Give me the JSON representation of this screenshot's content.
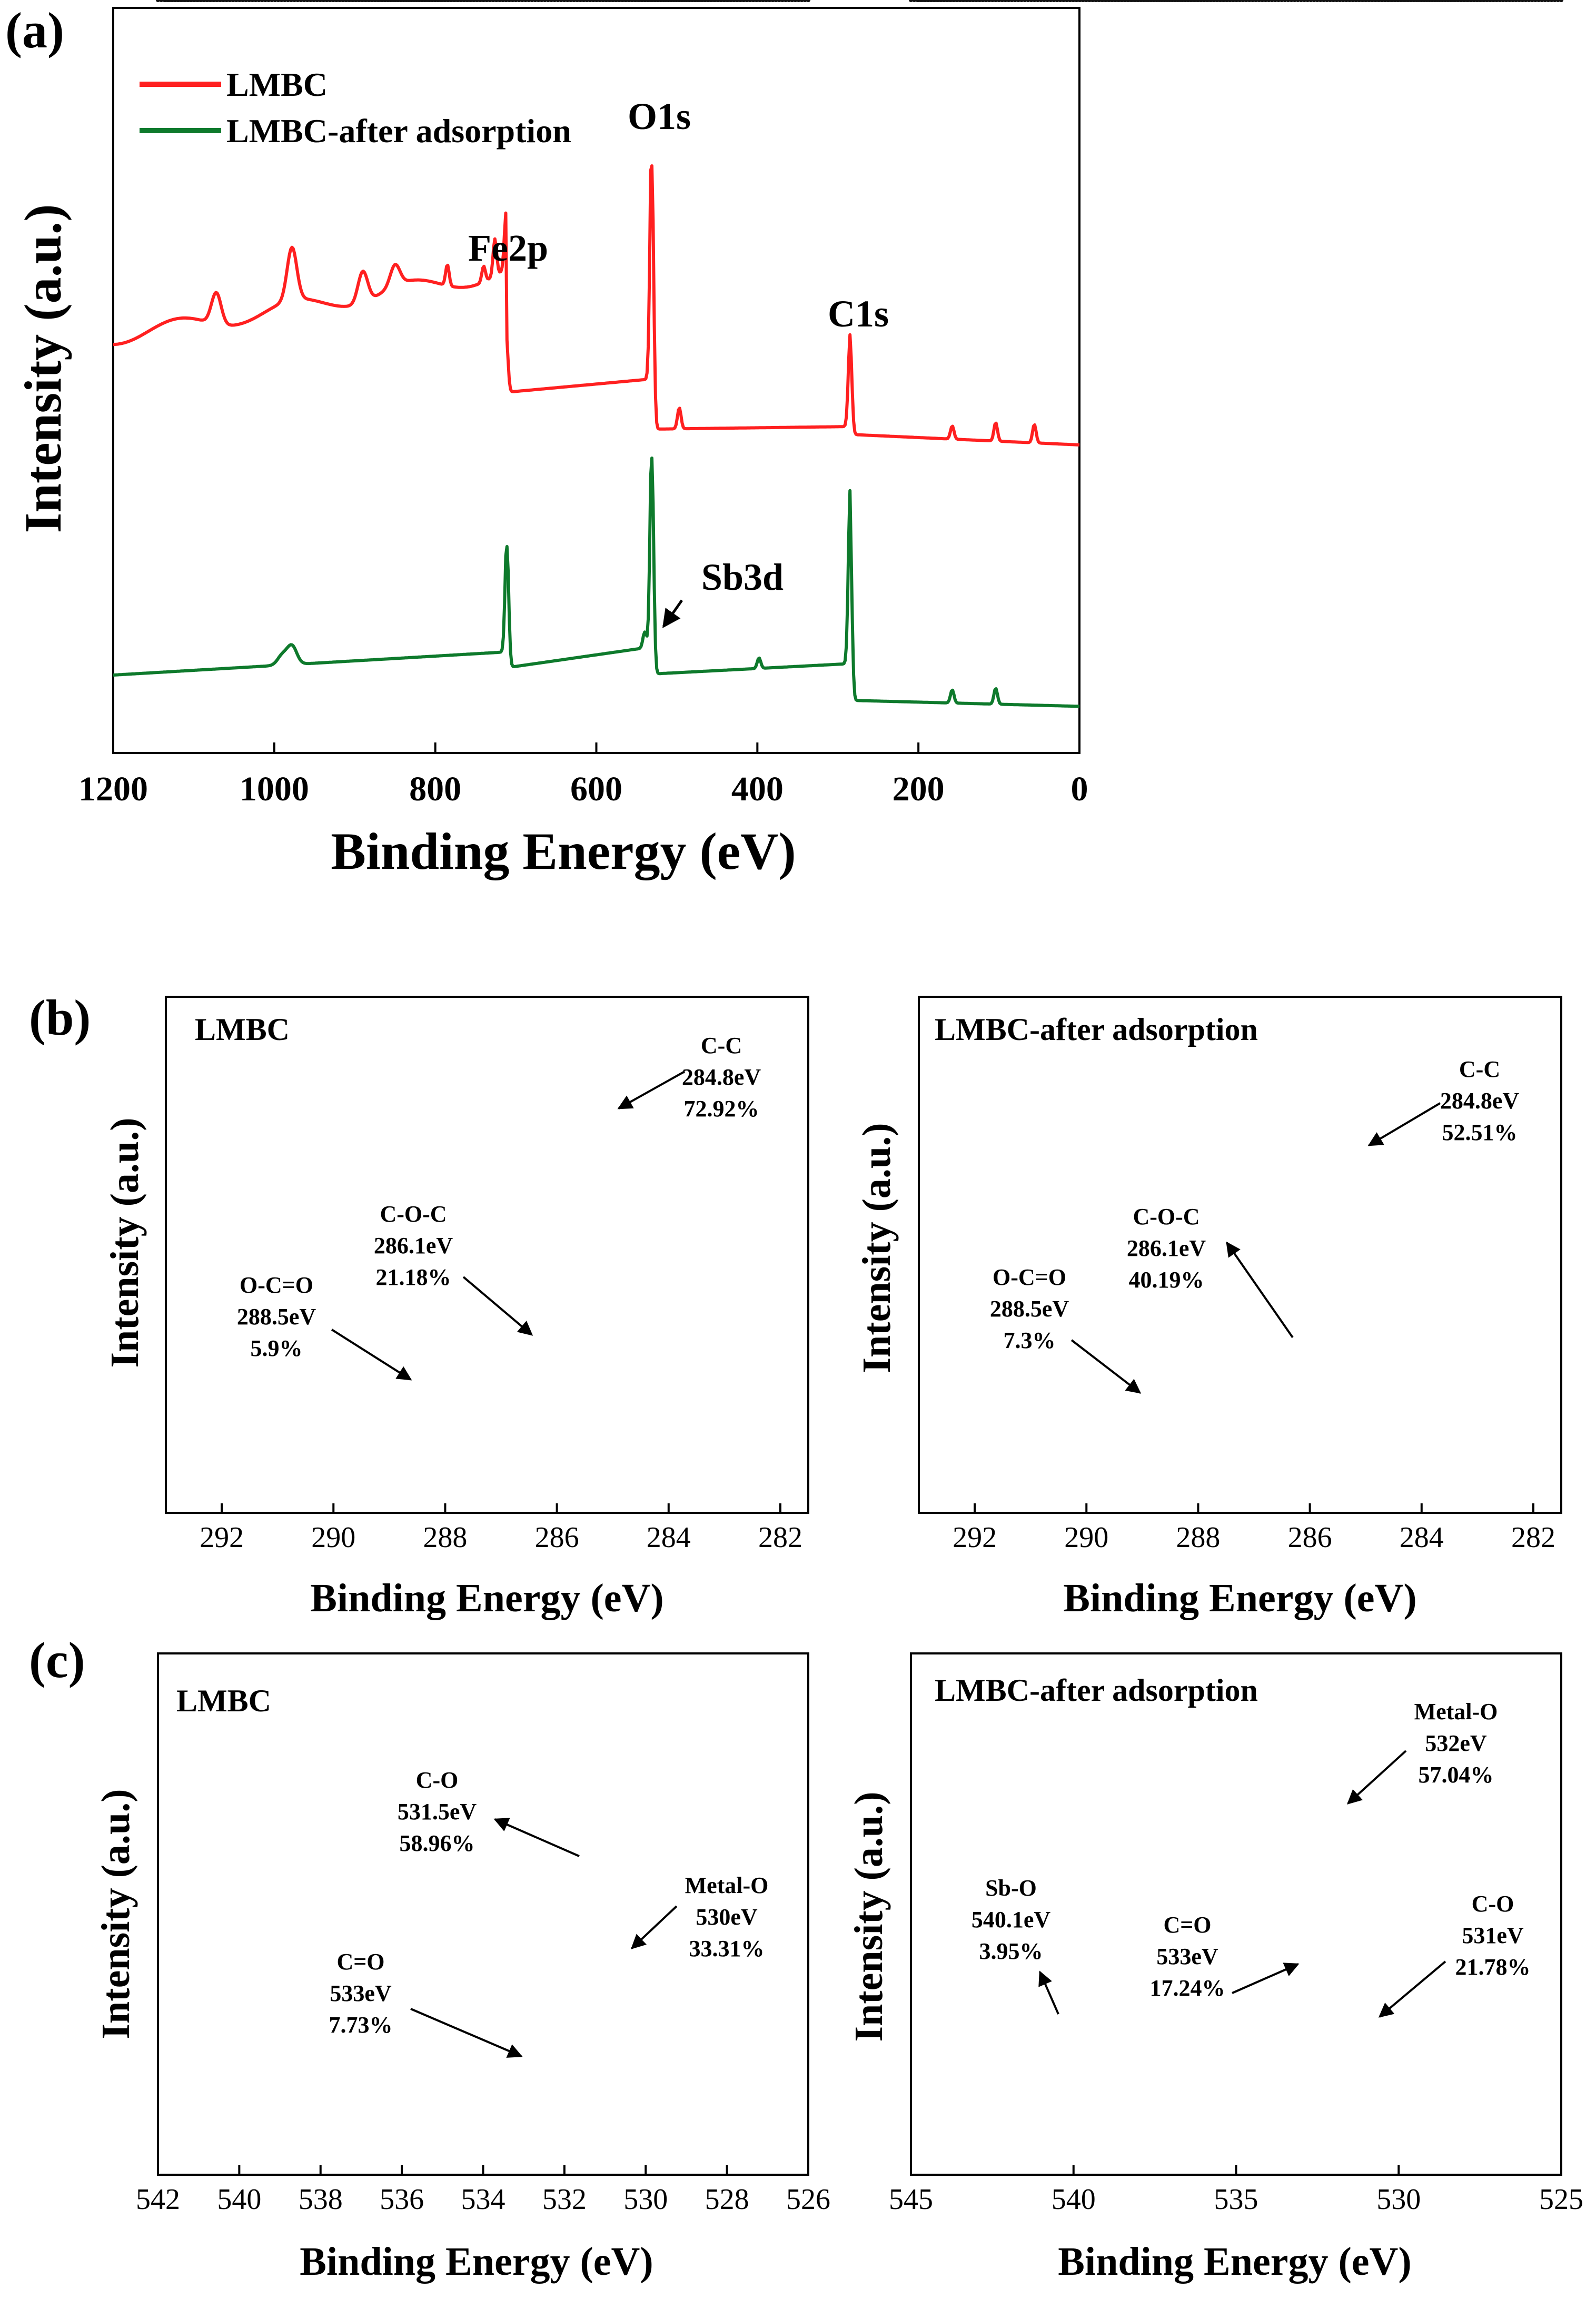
{
  "panels": {
    "a": {
      "letter": "(a)",
      "xlabel": "Binding Energy (eV)",
      "ylabel": "Intensity (a.u.)",
      "xticks": [
        "1200",
        "1000",
        "800",
        "600",
        "400",
        "200",
        "0"
      ],
      "legend": [
        {
          "label": "LMBC",
          "color": "#ff2020"
        },
        {
          "label": "LMBC-after adsorption",
          "color": "#0e7a2c"
        }
      ],
      "peaks": [
        {
          "label": "O1s"
        },
        {
          "label": "Fe2p"
        },
        {
          "label": "C1s"
        },
        {
          "label": "Sb3d"
        }
      ]
    },
    "b": {
      "letter": "(b)",
      "left": {
        "title": "LMBC",
        "xlabel": "Binding Energy (eV)",
        "ylabel": "Intensity (a.u.)",
        "xticks": [
          "292",
          "290",
          "288",
          "286",
          "284",
          "282"
        ],
        "annotations": [
          {
            "lines": [
              "C-C",
              "284.8eV",
              "72.92%"
            ]
          },
          {
            "lines": [
              "C-O-C",
              "286.1eV",
              "21.18%"
            ]
          },
          {
            "lines": [
              "O-C=O",
              "288.5eV",
              "5.9%"
            ]
          }
        ]
      },
      "right": {
        "title": "LMBC-after adsorption",
        "xlabel": "Binding Energy (eV)",
        "ylabel": "Intensity (a.u.)",
        "xticks": [
          "292",
          "290",
          "288",
          "286",
          "284",
          "282"
        ],
        "annotations": [
          {
            "lines": [
              "C-C",
              "284.8eV",
              "52.51%"
            ]
          },
          {
            "lines": [
              "C-O-C",
              "286.1eV",
              "40.19%"
            ]
          },
          {
            "lines": [
              "O-C=O",
              "288.5eV",
              "7.3%"
            ]
          }
        ]
      }
    },
    "c": {
      "letter": "(c)",
      "left": {
        "title": "LMBC",
        "xlabel": "Binding Energy (eV)",
        "ylabel": "Intensity (a.u.)",
        "xticks": [
          "542",
          "540",
          "538",
          "536",
          "534",
          "532",
          "530",
          "528",
          "526"
        ],
        "annotations": [
          {
            "lines": [
              "C-O",
              "531.5eV",
              "58.96%"
            ]
          },
          {
            "lines": [
              "Metal-O",
              "530eV",
              "33.31%"
            ]
          },
          {
            "lines": [
              "C=O",
              "533eV",
              "7.73%"
            ]
          }
        ]
      },
      "right": {
        "title": "LMBC-after adsorption",
        "xlabel": "Binding Energy (eV)",
        "ylabel": "Intensity (a.u.)",
        "xticks": [
          "545",
          "540",
          "535",
          "530",
          "525"
        ],
        "annotations": [
          {
            "lines": [
              "Metal-O",
              "532eV",
              "57.04%"
            ]
          },
          {
            "lines": [
              "Sb-O",
              "540.1eV",
              "3.95%"
            ]
          },
          {
            "lines": [
              "C=O",
              "533eV",
              "17.24%"
            ]
          },
          {
            "lines": [
              "C-O",
              "531eV",
              "21.78%"
            ]
          }
        ]
      }
    }
  },
  "chart_data": [
    {
      "type": "line",
      "panel": "a",
      "xlabel": "Binding Energy (eV)",
      "ylabel": "Intensity (a.u.)",
      "xlim": [
        1200,
        0
      ],
      "x_reversed": true,
      "y_ticks_shown": false,
      "series": [
        {
          "name": "LMBC",
          "color": "#ff2020",
          "peaks_eV": [
            1072,
            978,
            712,
            531,
            497,
            284.8,
            158,
            104,
            56
          ]
        },
        {
          "name": "LMBC-after adsorption",
          "color": "#0e7a2c",
          "peaks_eV": [
            978,
            711,
            531,
            540,
            398,
            284.8,
            158,
            104
          ]
        }
      ]
    },
    {
      "type": "area",
      "panel": "b-left",
      "xlabel": "Binding Energy (eV)",
      "ylabel": "Intensity (a.u.)",
      "xlim": [
        293,
        281.5
      ],
      "x_reversed": true,
      "y_ticks_shown": false,
      "components": [
        {
          "center": 284.8,
          "percent": 72.92,
          "color": "#f2b636"
        },
        {
          "center": 286.1,
          "percent": 21.18,
          "color": "#3d8de6"
        },
        {
          "center": 288.5,
          "percent": 5.9,
          "color": "#e8466a"
        }
      ]
    },
    {
      "type": "area",
      "panel": "b-right",
      "xlabel": "Binding Energy (eV)",
      "ylabel": "Intensity (a.u.)",
      "xlim": [
        293,
        281.5
      ],
      "x_reversed": true,
      "y_ticks_shown": false,
      "components": [
        {
          "center": 284.8,
          "percent": 52.51,
          "color": "#f2b636"
        },
        {
          "center": 286.1,
          "percent": 40.19,
          "color": "#3d8de6"
        },
        {
          "center": 288.5,
          "percent": 7.3,
          "color": "#e8466a"
        }
      ]
    },
    {
      "type": "area",
      "panel": "c-left",
      "xlabel": "Binding Energy (eV)",
      "ylabel": "Intensity (a.u.)",
      "xlim": [
        542,
        526
      ],
      "x_reversed": true,
      "y_ticks_shown": false,
      "components": [
        {
          "center": 531.5,
          "percent": 58.96,
          "color": "#18c266"
        },
        {
          "center": 530,
          "percent": 33.31,
          "color": "#f2b636"
        },
        {
          "center": 533,
          "percent": 7.73,
          "color": "#3d8de6"
        }
      ]
    },
    {
      "type": "area",
      "panel": "c-right",
      "xlabel": "Binding Energy (eV)",
      "ylabel": "Intensity (a.u.)",
      "xlim": [
        545,
        525
      ],
      "x_reversed": true,
      "y_ticks_shown": false,
      "components": [
        {
          "center": 532,
          "percent": 57.04,
          "color": "#f2b636"
        },
        {
          "center": 540.1,
          "percent": 3.95,
          "color": "#e8466a"
        },
        {
          "center": 533,
          "percent": 17.24,
          "color": "#3d8de6"
        },
        {
          "center": 531,
          "percent": 21.78,
          "color": "#18c266"
        }
      ]
    }
  ]
}
